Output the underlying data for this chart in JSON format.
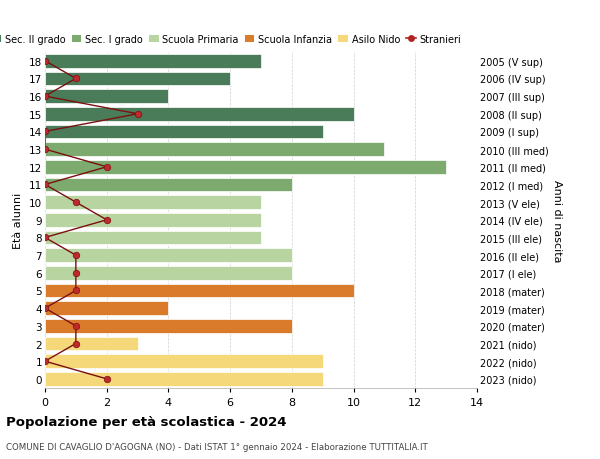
{
  "ages": [
    18,
    17,
    16,
    15,
    14,
    13,
    12,
    11,
    10,
    9,
    8,
    7,
    6,
    5,
    4,
    3,
    2,
    1,
    0
  ],
  "right_labels": [
    "2005 (V sup)",
    "2006 (IV sup)",
    "2007 (III sup)",
    "2008 (II sup)",
    "2009 (I sup)",
    "2010 (III med)",
    "2011 (II med)",
    "2012 (I med)",
    "2013 (V ele)",
    "2014 (IV ele)",
    "2015 (III ele)",
    "2016 (II ele)",
    "2017 (I ele)",
    "2018 (mater)",
    "2019 (mater)",
    "2020 (mater)",
    "2021 (nido)",
    "2022 (nido)",
    "2023 (nido)"
  ],
  "bar_values": [
    7,
    6,
    4,
    10,
    9,
    11,
    13,
    8,
    7,
    7,
    7,
    8,
    8,
    10,
    4,
    8,
    3,
    9,
    9
  ],
  "bar_colors": [
    "#4a7c59",
    "#4a7c59",
    "#4a7c59",
    "#4a7c59",
    "#4a7c59",
    "#7daa6e",
    "#7daa6e",
    "#7daa6e",
    "#b8d4a0",
    "#b8d4a0",
    "#b8d4a0",
    "#b8d4a0",
    "#b8d4a0",
    "#d97b2b",
    "#d97b2b",
    "#d97b2b",
    "#f5d87a",
    "#f5d87a",
    "#f5d87a"
  ],
  "stranieri_values": [
    0,
    1,
    0,
    3,
    0,
    0,
    2,
    0,
    1,
    2,
    0,
    1,
    1,
    1,
    0,
    1,
    1,
    0,
    2
  ],
  "legend_labels": [
    "Sec. II grado",
    "Sec. I grado",
    "Scuola Primaria",
    "Scuola Infanzia",
    "Asilo Nido",
    "Stranieri"
  ],
  "legend_colors": [
    "#4a7c59",
    "#7daa6e",
    "#b8d4a0",
    "#d97b2b",
    "#f5d87a",
    "#b22222"
  ],
  "title": "Popolazione per età scolastica - 2024",
  "subtitle": "COMUNE DI CAVAGLIO D'AGOGNA (NO) - Dati ISTAT 1° gennaio 2024 - Elaborazione TUTTITALIA.IT",
  "ylabel_left": "Età alunni",
  "ylabel_right": "Anni di nascita",
  "xlim": [
    0,
    14
  ],
  "xticks": [
    0,
    2,
    4,
    6,
    8,
    10,
    12,
    14
  ],
  "background_color": "#ffffff",
  "grid_color": "#d0d0d0",
  "bar_height": 0.78
}
